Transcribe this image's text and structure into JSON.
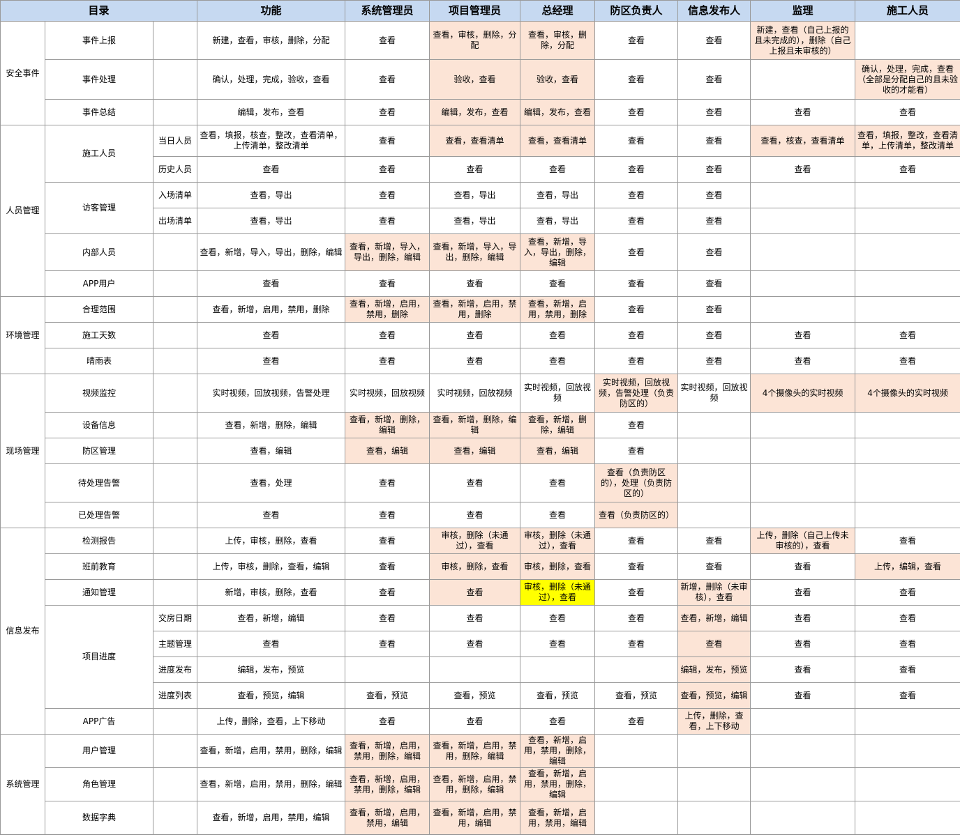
{
  "headers": [
    "目录",
    "功能",
    "系统管理员",
    "项目管理员",
    "总经理",
    "防区负责人",
    "信息发布人",
    "监理",
    "施工人员"
  ],
  "sections": [
    {
      "name": "安全事件",
      "rows": [
        {
          "item": "事件上报",
          "sub": "",
          "func": "新建，查看，审核，删除，分配",
          "roles": [
            [
              "查看",
              ""
            ],
            [
              "查看，审核，删除，分配",
              "hl"
            ],
            [
              "查看，审核，删除，分配",
              "hl"
            ],
            [
              "查看",
              ""
            ],
            [
              "查看",
              ""
            ],
            [
              "新建，查看（自己上报的且未完成的），删除（自己上报且未审核的）",
              "hl"
            ],
            [
              "",
              ""
            ]
          ]
        },
        {
          "item": "事件处理",
          "sub": "",
          "func": "确认，处理，完成，验收，查看",
          "roles": [
            [
              "查看",
              ""
            ],
            [
              "验收，查看",
              "hl"
            ],
            [
              "验收，查看",
              "hl"
            ],
            [
              "查看",
              ""
            ],
            [
              "查看",
              ""
            ],
            [
              "",
              ""
            ],
            [
              "确认，处理，完成，查看（全部是分配自己的且未验收的才能看）",
              "hl"
            ]
          ]
        },
        {
          "item": "事件总结",
          "sub": "",
          "func": "编辑，发布，查看",
          "roles": [
            [
              "查看",
              ""
            ],
            [
              "编辑，发布，查看",
              "hl"
            ],
            [
              "编辑，发布，查看",
              "hl"
            ],
            [
              "查看",
              ""
            ],
            [
              "查看",
              ""
            ],
            [
              "查看",
              ""
            ],
            [
              "查看",
              ""
            ]
          ]
        }
      ]
    },
    {
      "name": "人员管理",
      "rows": [
        {
          "item": "施工人员",
          "sub": "当日人员",
          "func": "查看，填报，核查，整改，查看清单，上传清单，整改清单",
          "roles": [
            [
              "查看",
              ""
            ],
            [
              "查看，查看清单",
              "hl"
            ],
            [
              "查看，查看清单",
              "hl"
            ],
            [
              "查看",
              ""
            ],
            [
              "查看",
              ""
            ],
            [
              "查看，核查，查看清单",
              "hl"
            ],
            [
              "查看，填报，整改，查看清单，上传清单，整改清单",
              "hl"
            ]
          ]
        },
        {
          "item": "",
          "sub": "历史人员",
          "func": "查看",
          "roles": [
            [
              "查看",
              ""
            ],
            [
              "查看",
              ""
            ],
            [
              "查看",
              ""
            ],
            [
              "查看",
              ""
            ],
            [
              "查看",
              ""
            ],
            [
              "查看",
              ""
            ],
            [
              "查看",
              ""
            ]
          ]
        },
        {
          "item": "访客管理",
          "sub": "入场清单",
          "func": "查看，导出",
          "roles": [
            [
              "查看",
              ""
            ],
            [
              "查看，导出",
              ""
            ],
            [
              "查看，导出",
              ""
            ],
            [
              "查看",
              ""
            ],
            [
              "查看",
              ""
            ],
            [
              "",
              ""
            ],
            [
              "",
              ""
            ]
          ]
        },
        {
          "item": "",
          "sub": "出场清单",
          "func": "查看，导出",
          "roles": [
            [
              "查看",
              ""
            ],
            [
              "查看，导出",
              ""
            ],
            [
              "查看，导出",
              ""
            ],
            [
              "查看",
              ""
            ],
            [
              "查看",
              ""
            ],
            [
              "",
              ""
            ],
            [
              "",
              ""
            ]
          ]
        },
        {
          "item": "内部人员",
          "sub": "",
          "func": "查看，新增，导入，导出，删除，编辑",
          "roles": [
            [
              "查看，新增，导入，导出，删除，编辑",
              "hl"
            ],
            [
              "查看，新增，导入，导出，删除，编辑",
              "hl"
            ],
            [
              "查看，新增，导入，导出，删除，编辑",
              "hl"
            ],
            [
              "查看",
              ""
            ],
            [
              "查看",
              ""
            ],
            [
              "",
              ""
            ],
            [
              "",
              ""
            ]
          ]
        },
        {
          "item": "APP用户",
          "sub": "",
          "func": "查看",
          "roles": [
            [
              "查看",
              ""
            ],
            [
              "查看",
              ""
            ],
            [
              "查看",
              ""
            ],
            [
              "查看",
              ""
            ],
            [
              "查看",
              ""
            ],
            [
              "",
              ""
            ],
            [
              "",
              ""
            ]
          ]
        }
      ]
    },
    {
      "name": "环境管理",
      "rows": [
        {
          "item": "合理范围",
          "sub": "",
          "func": "查看，新增，启用，禁用，删除",
          "roles": [
            [
              "查看，新增，启用，禁用，删除",
              "hl"
            ],
            [
              "查看，新增，启用，禁用，删除",
              "hl"
            ],
            [
              "查看，新增，启用，禁用，删除",
              "hl"
            ],
            [
              "查看",
              ""
            ],
            [
              "查看",
              ""
            ],
            [
              "",
              ""
            ],
            [
              "",
              ""
            ]
          ]
        },
        {
          "item": "施工天数",
          "sub": "",
          "func": "查看",
          "roles": [
            [
              "查看",
              ""
            ],
            [
              "查看",
              ""
            ],
            [
              "查看",
              ""
            ],
            [
              "查看",
              ""
            ],
            [
              "查看",
              ""
            ],
            [
              "查看",
              ""
            ],
            [
              "查看",
              ""
            ]
          ]
        },
        {
          "item": "晴雨表",
          "sub": "",
          "func": "查看",
          "roles": [
            [
              "查看",
              ""
            ],
            [
              "查看",
              ""
            ],
            [
              "查看",
              ""
            ],
            [
              "查看",
              ""
            ],
            [
              "查看",
              ""
            ],
            [
              "查看",
              ""
            ],
            [
              "查看",
              ""
            ]
          ]
        }
      ]
    },
    {
      "name": "现场管理",
      "rows": [
        {
          "item": "视频监控",
          "sub": "",
          "func": "实时视频，回放视频，告警处理",
          "roles": [
            [
              "实时视频，回放视频",
              ""
            ],
            [
              "实时视频，回放视频",
              ""
            ],
            [
              "实时视频，回放视频",
              ""
            ],
            [
              "实时视频，回放视频，告警处理（负责防区的）",
              "hl"
            ],
            [
              "实时视频，回放视频",
              ""
            ],
            [
              "4个摄像头的实时视频",
              "hl"
            ],
            [
              "4个摄像头的实时视频",
              "hl"
            ]
          ]
        },
        {
          "item": "设备信息",
          "sub": "",
          "func": "查看，新增，删除，编辑",
          "roles": [
            [
              "查看，新增，删除，编辑",
              "hl"
            ],
            [
              "查看，新增，删除，编辑",
              "hl"
            ],
            [
              "查看，新增，删除，编辑",
              "hl"
            ],
            [
              "查看",
              ""
            ],
            [
              "",
              ""
            ],
            [
              "",
              ""
            ],
            [
              "",
              ""
            ]
          ]
        },
        {
          "item": "防区管理",
          "sub": "",
          "func": "查看，编辑",
          "roles": [
            [
              "查看，编辑",
              "hl"
            ],
            [
              "查看，编辑",
              "hl"
            ],
            [
              "查看，编辑",
              "hl"
            ],
            [
              "查看",
              ""
            ],
            [
              "",
              ""
            ],
            [
              "",
              ""
            ],
            [
              "",
              ""
            ]
          ]
        },
        {
          "item": "待处理告警",
          "sub": "",
          "func": "查看，处理",
          "roles": [
            [
              "查看",
              ""
            ],
            [
              "查看",
              ""
            ],
            [
              "查看",
              ""
            ],
            [
              "查看（负责防区的），处理（负责防区的）",
              "hl"
            ],
            [
              "",
              ""
            ],
            [
              "",
              ""
            ],
            [
              "",
              ""
            ]
          ]
        },
        {
          "item": "已处理告警",
          "sub": "",
          "func": "查看",
          "roles": [
            [
              "查看",
              ""
            ],
            [
              "查看",
              ""
            ],
            [
              "查看",
              ""
            ],
            [
              "查看（负责防区的）",
              "hl"
            ],
            [
              "",
              ""
            ],
            [
              "",
              ""
            ],
            [
              "",
              ""
            ]
          ]
        }
      ]
    },
    {
      "name": "信息发布",
      "rows": [
        {
          "item": "检测报告",
          "sub": "",
          "func": "上传，审核，删除，查看",
          "roles": [
            [
              "查看",
              ""
            ],
            [
              "审核，删除（未通过），查看",
              "hl"
            ],
            [
              "审核，删除（未通过），查看",
              "hl"
            ],
            [
              "查看",
              ""
            ],
            [
              "查看",
              ""
            ],
            [
              "上传，删除（自己上传未审核的），查看",
              "hl"
            ],
            [
              "查看",
              ""
            ]
          ]
        },
        {
          "item": "班前教育",
          "sub": "",
          "func": "上传，审核，删除，查看，编辑",
          "roles": [
            [
              "查看",
              ""
            ],
            [
              "审核，删除，查看",
              "hl"
            ],
            [
              "审核，删除，查看",
              "hl"
            ],
            [
              "查看",
              ""
            ],
            [
              "查看",
              ""
            ],
            [
              "查看",
              ""
            ],
            [
              "上传，编辑，查看",
              "hl"
            ]
          ]
        },
        {
          "item": "通知管理",
          "sub": "",
          "func": "新增，审核，删除，查看",
          "roles": [
            [
              "查看",
              ""
            ],
            [
              "查看",
              "hl"
            ],
            [
              "审核，删除（未通过），查看",
              "yl"
            ],
            [
              "查看",
              ""
            ],
            [
              "新增，删除（未审核），查看",
              "hl"
            ],
            [
              "查看",
              ""
            ],
            [
              "查看",
              ""
            ]
          ]
        },
        {
          "item": "项目进度",
          "sub": "交房日期",
          "func": "查看，新增，编辑",
          "roles": [
            [
              "查看",
              ""
            ],
            [
              "查看",
              ""
            ],
            [
              "查看",
              ""
            ],
            [
              "查看",
              ""
            ],
            [
              "查看，新增，编辑",
              "hl"
            ],
            [
              "查看",
              ""
            ],
            [
              "查看",
              ""
            ]
          ]
        },
        {
          "item": "",
          "sub": "主题管理",
          "func": "查看",
          "roles": [
            [
              "查看",
              ""
            ],
            [
              "查看",
              ""
            ],
            [
              "查看",
              ""
            ],
            [
              "查看",
              ""
            ],
            [
              "查看",
              "hl"
            ],
            [
              "查看",
              ""
            ],
            [
              "查看",
              ""
            ]
          ]
        },
        {
          "item": "",
          "sub": "进度发布",
          "func": "编辑，发布，预览",
          "roles": [
            [
              "",
              ""
            ],
            [
              "",
              ""
            ],
            [
              "",
              ""
            ],
            [
              "",
              ""
            ],
            [
              "编辑，发布，预览",
              "hl"
            ],
            [
              "查看",
              ""
            ],
            [
              "查看",
              ""
            ]
          ]
        },
        {
          "item": "",
          "sub": "进度列表",
          "func": "查看，预览，编辑",
          "roles": [
            [
              "查看，预览",
              ""
            ],
            [
              "查看，预览",
              ""
            ],
            [
              "查看，预览",
              ""
            ],
            [
              "查看，预览",
              ""
            ],
            [
              "查看，预览，编辑",
              "hl"
            ],
            [
              "查看",
              ""
            ],
            [
              "查看",
              ""
            ]
          ]
        },
        {
          "item": "APP广告",
          "sub": "",
          "func": "上传，删除，查看，上下移动",
          "roles": [
            [
              "查看",
              ""
            ],
            [
              "查看",
              ""
            ],
            [
              "查看",
              ""
            ],
            [
              "查看",
              ""
            ],
            [
              "上传，删除，查看，上下移动",
              "hl"
            ],
            [
              "",
              ""
            ],
            [
              "",
              ""
            ]
          ]
        }
      ]
    },
    {
      "name": "系统管理",
      "rows": [
        {
          "item": "用户管理",
          "sub": "",
          "func": "查看，新增，启用，禁用，删除，编辑",
          "roles": [
            [
              "查看，新增，启用，禁用，删除，编辑",
              "hl"
            ],
            [
              "查看，新增，启用，禁用，删除，编辑",
              "hl"
            ],
            [
              "查看，新增，启用，禁用，删除，编辑",
              "hl"
            ],
            [
              "",
              ""
            ],
            [
              "",
              ""
            ],
            [
              "",
              ""
            ],
            [
              "",
              ""
            ]
          ]
        },
        {
          "item": "角色管理",
          "sub": "",
          "func": "查看，新增，启用，禁用，删除，编辑",
          "roles": [
            [
              "查看，新增，启用，禁用，删除，编辑",
              "hl"
            ],
            [
              "查看，新增，启用，禁用，删除，编辑",
              "hl"
            ],
            [
              "查看，新增，启用，禁用，删除，编辑",
              "hl"
            ],
            [
              "",
              ""
            ],
            [
              "",
              ""
            ],
            [
              "",
              ""
            ],
            [
              "",
              ""
            ]
          ]
        },
        {
          "item": "数据字典",
          "sub": "",
          "func": "查看，新增，启用，禁用，编辑",
          "roles": [
            [
              "查看，新增，启用，禁用，编辑",
              "hl"
            ],
            [
              "查看，新增，启用，禁用，编辑",
              "hl"
            ],
            [
              "查看，新增，启用，禁用，编辑",
              "hl"
            ],
            [
              "",
              ""
            ],
            [
              "",
              ""
            ],
            [
              "",
              ""
            ],
            [
              "",
              ""
            ]
          ]
        }
      ]
    }
  ]
}
